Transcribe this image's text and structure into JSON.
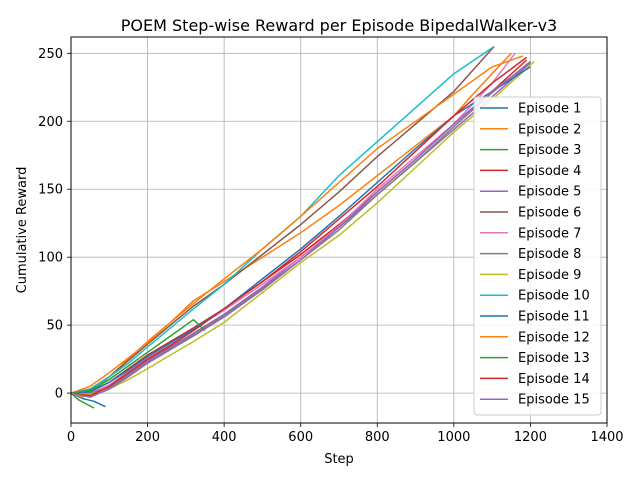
{
  "chart_data": {
    "type": "line",
    "title": "POEM Step-wise Reward per Episode BipedalWalker-v3",
    "xlabel": "Step",
    "ylabel": "Cumulative Reward",
    "xlim": [
      0,
      1400
    ],
    "ylim": [
      -22,
      262
    ],
    "xticks": [
      0,
      200,
      400,
      600,
      800,
      1000,
      1200,
      1400
    ],
    "yticks": [
      0,
      50,
      100,
      150,
      200,
      250
    ],
    "grid": true,
    "legend_position": "right",
    "series": [
      {
        "name": "Episode 1",
        "color": "#1f77b4",
        "x": [
          0,
          30,
          60,
          90
        ],
        "y": [
          0,
          -4,
          -6,
          -10
        ]
      },
      {
        "name": "Episode 2",
        "color": "#ff7f0e",
        "x": [
          0,
          30,
          60,
          100,
          150,
          200,
          260,
          320,
          400,
          500,
          600,
          700,
          800,
          900,
          1000,
          1050,
          1100,
          1150
        ],
        "y": [
          0,
          -3,
          2,
          12,
          25,
          38,
          52,
          68,
          82,
          100,
          118,
          138,
          160,
          182,
          204,
          220,
          235,
          250
        ]
      },
      {
        "name": "Episode 3",
        "color": "#2ca02c",
        "x": [
          0,
          20,
          40,
          60
        ],
        "y": [
          0,
          -5,
          -8,
          -11
        ]
      },
      {
        "name": "Episode 4",
        "color": "#d62728",
        "x": [
          0,
          50,
          100,
          150,
          200,
          260,
          320,
          400,
          500,
          600,
          700,
          800,
          900,
          1000,
          1100,
          1190
        ],
        "y": [
          0,
          1,
          8,
          18,
          28,
          38,
          48,
          62,
          82,
          102,
          124,
          148,
          172,
          198,
          222,
          245
        ]
      },
      {
        "name": "Episode 5",
        "color": "#9467bd",
        "x": [
          0,
          50,
          100,
          150,
          200,
          260,
          320,
          400,
          500,
          600,
          700,
          800,
          900,
          1000,
          1100,
          1200
        ],
        "y": [
          0,
          -2,
          4,
          14,
          24,
          34,
          44,
          58,
          78,
          100,
          122,
          146,
          170,
          194,
          218,
          243
        ]
      },
      {
        "name": "Episode 6",
        "color": "#8c564b",
        "x": [
          0,
          50,
          100,
          150,
          200,
          260,
          320,
          400,
          500,
          600,
          700,
          800,
          900,
          1000,
          1105
        ],
        "y": [
          0,
          3,
          12,
          24,
          36,
          50,
          64,
          80,
          102,
          124,
          148,
          174,
          198,
          222,
          255
        ]
      },
      {
        "name": "Episode 7",
        "color": "#e377c2",
        "x": [
          0,
          50,
          100,
          150,
          200,
          260,
          320,
          400,
          500,
          600,
          700,
          800,
          900,
          1000,
          1100,
          1160
        ],
        "y": [
          0,
          0,
          6,
          16,
          26,
          36,
          47,
          61,
          80,
          100,
          123,
          150,
          174,
          198,
          228,
          250
        ]
      },
      {
        "name": "Episode 8",
        "color": "#7f7f7f",
        "x": [
          0,
          50,
          100,
          150,
          200,
          260,
          320,
          400,
          500,
          600,
          700,
          800,
          900,
          1000,
          1100,
          1200
        ],
        "y": [
          0,
          0,
          4,
          13,
          23,
          33,
          43,
          57,
          77,
          98,
          120,
          146,
          170,
          196,
          221,
          244
        ]
      },
      {
        "name": "Episode 9",
        "color": "#bcbd22",
        "x": [
          0,
          50,
          100,
          150,
          200,
          260,
          320,
          400,
          500,
          600,
          700,
          800,
          900,
          1000,
          1100,
          1210
        ],
        "y": [
          0,
          -1,
          3,
          10,
          18,
          28,
          38,
          52,
          74,
          96,
          116,
          140,
          166,
          192,
          216,
          244
        ]
      },
      {
        "name": "Episode 10",
        "color": "#17becf",
        "x": [
          0,
          50,
          100,
          150,
          200,
          260,
          320,
          400,
          500,
          600,
          700,
          800,
          900,
          1000,
          1100
        ],
        "y": [
          0,
          3,
          12,
          22,
          34,
          48,
          62,
          80,
          106,
          130,
          160,
          185,
          210,
          235,
          254
        ]
      },
      {
        "name": "Episode 11",
        "color": "#1f77b4",
        "x": [
          0,
          50,
          100,
          150,
          200,
          260,
          320,
          400,
          500,
          600,
          700,
          800,
          900,
          1000,
          1100,
          1200
        ],
        "y": [
          0,
          1,
          8,
          17,
          27,
          37,
          47,
          62,
          84,
          106,
          130,
          155,
          180,
          204,
          222,
          240
        ]
      },
      {
        "name": "Episode 12",
        "color": "#ff7f0e",
        "x": [
          0,
          50,
          100,
          150,
          200,
          260,
          320,
          400,
          500,
          600,
          700,
          800,
          900,
          1000,
          1100,
          1180
        ],
        "y": [
          0,
          5,
          15,
          26,
          37,
          52,
          66,
          84,
          106,
          130,
          155,
          180,
          200,
          220,
          240,
          248
        ]
      },
      {
        "name": "Episode 13",
        "color": "#2ca02c",
        "x": [
          0,
          50,
          100,
          150,
          200,
          260,
          320,
          350
        ],
        "y": [
          0,
          2,
          10,
          20,
          30,
          42,
          54,
          46
        ]
      },
      {
        "name": "Episode 14",
        "color": "#d62728",
        "x": [
          0,
          50,
          100,
          150,
          200,
          260,
          320,
          400,
          500,
          600,
          700,
          800,
          900,
          1000,
          1100,
          1190
        ],
        "y": [
          0,
          -2,
          5,
          15,
          25,
          35,
          46,
          62,
          82,
          104,
          128,
          152,
          178,
          204,
          228,
          247
        ]
      },
      {
        "name": "Episode 15",
        "color": "#9467bd",
        "x": [
          0,
          50,
          100,
          150,
          200,
          260,
          320,
          400,
          500,
          600,
          700,
          800,
          900,
          1000,
          1100,
          1200
        ],
        "y": [
          0,
          -3,
          3,
          12,
          22,
          32,
          42,
          56,
          76,
          98,
          122,
          148,
          172,
          198,
          222,
          243
        ]
      }
    ]
  }
}
